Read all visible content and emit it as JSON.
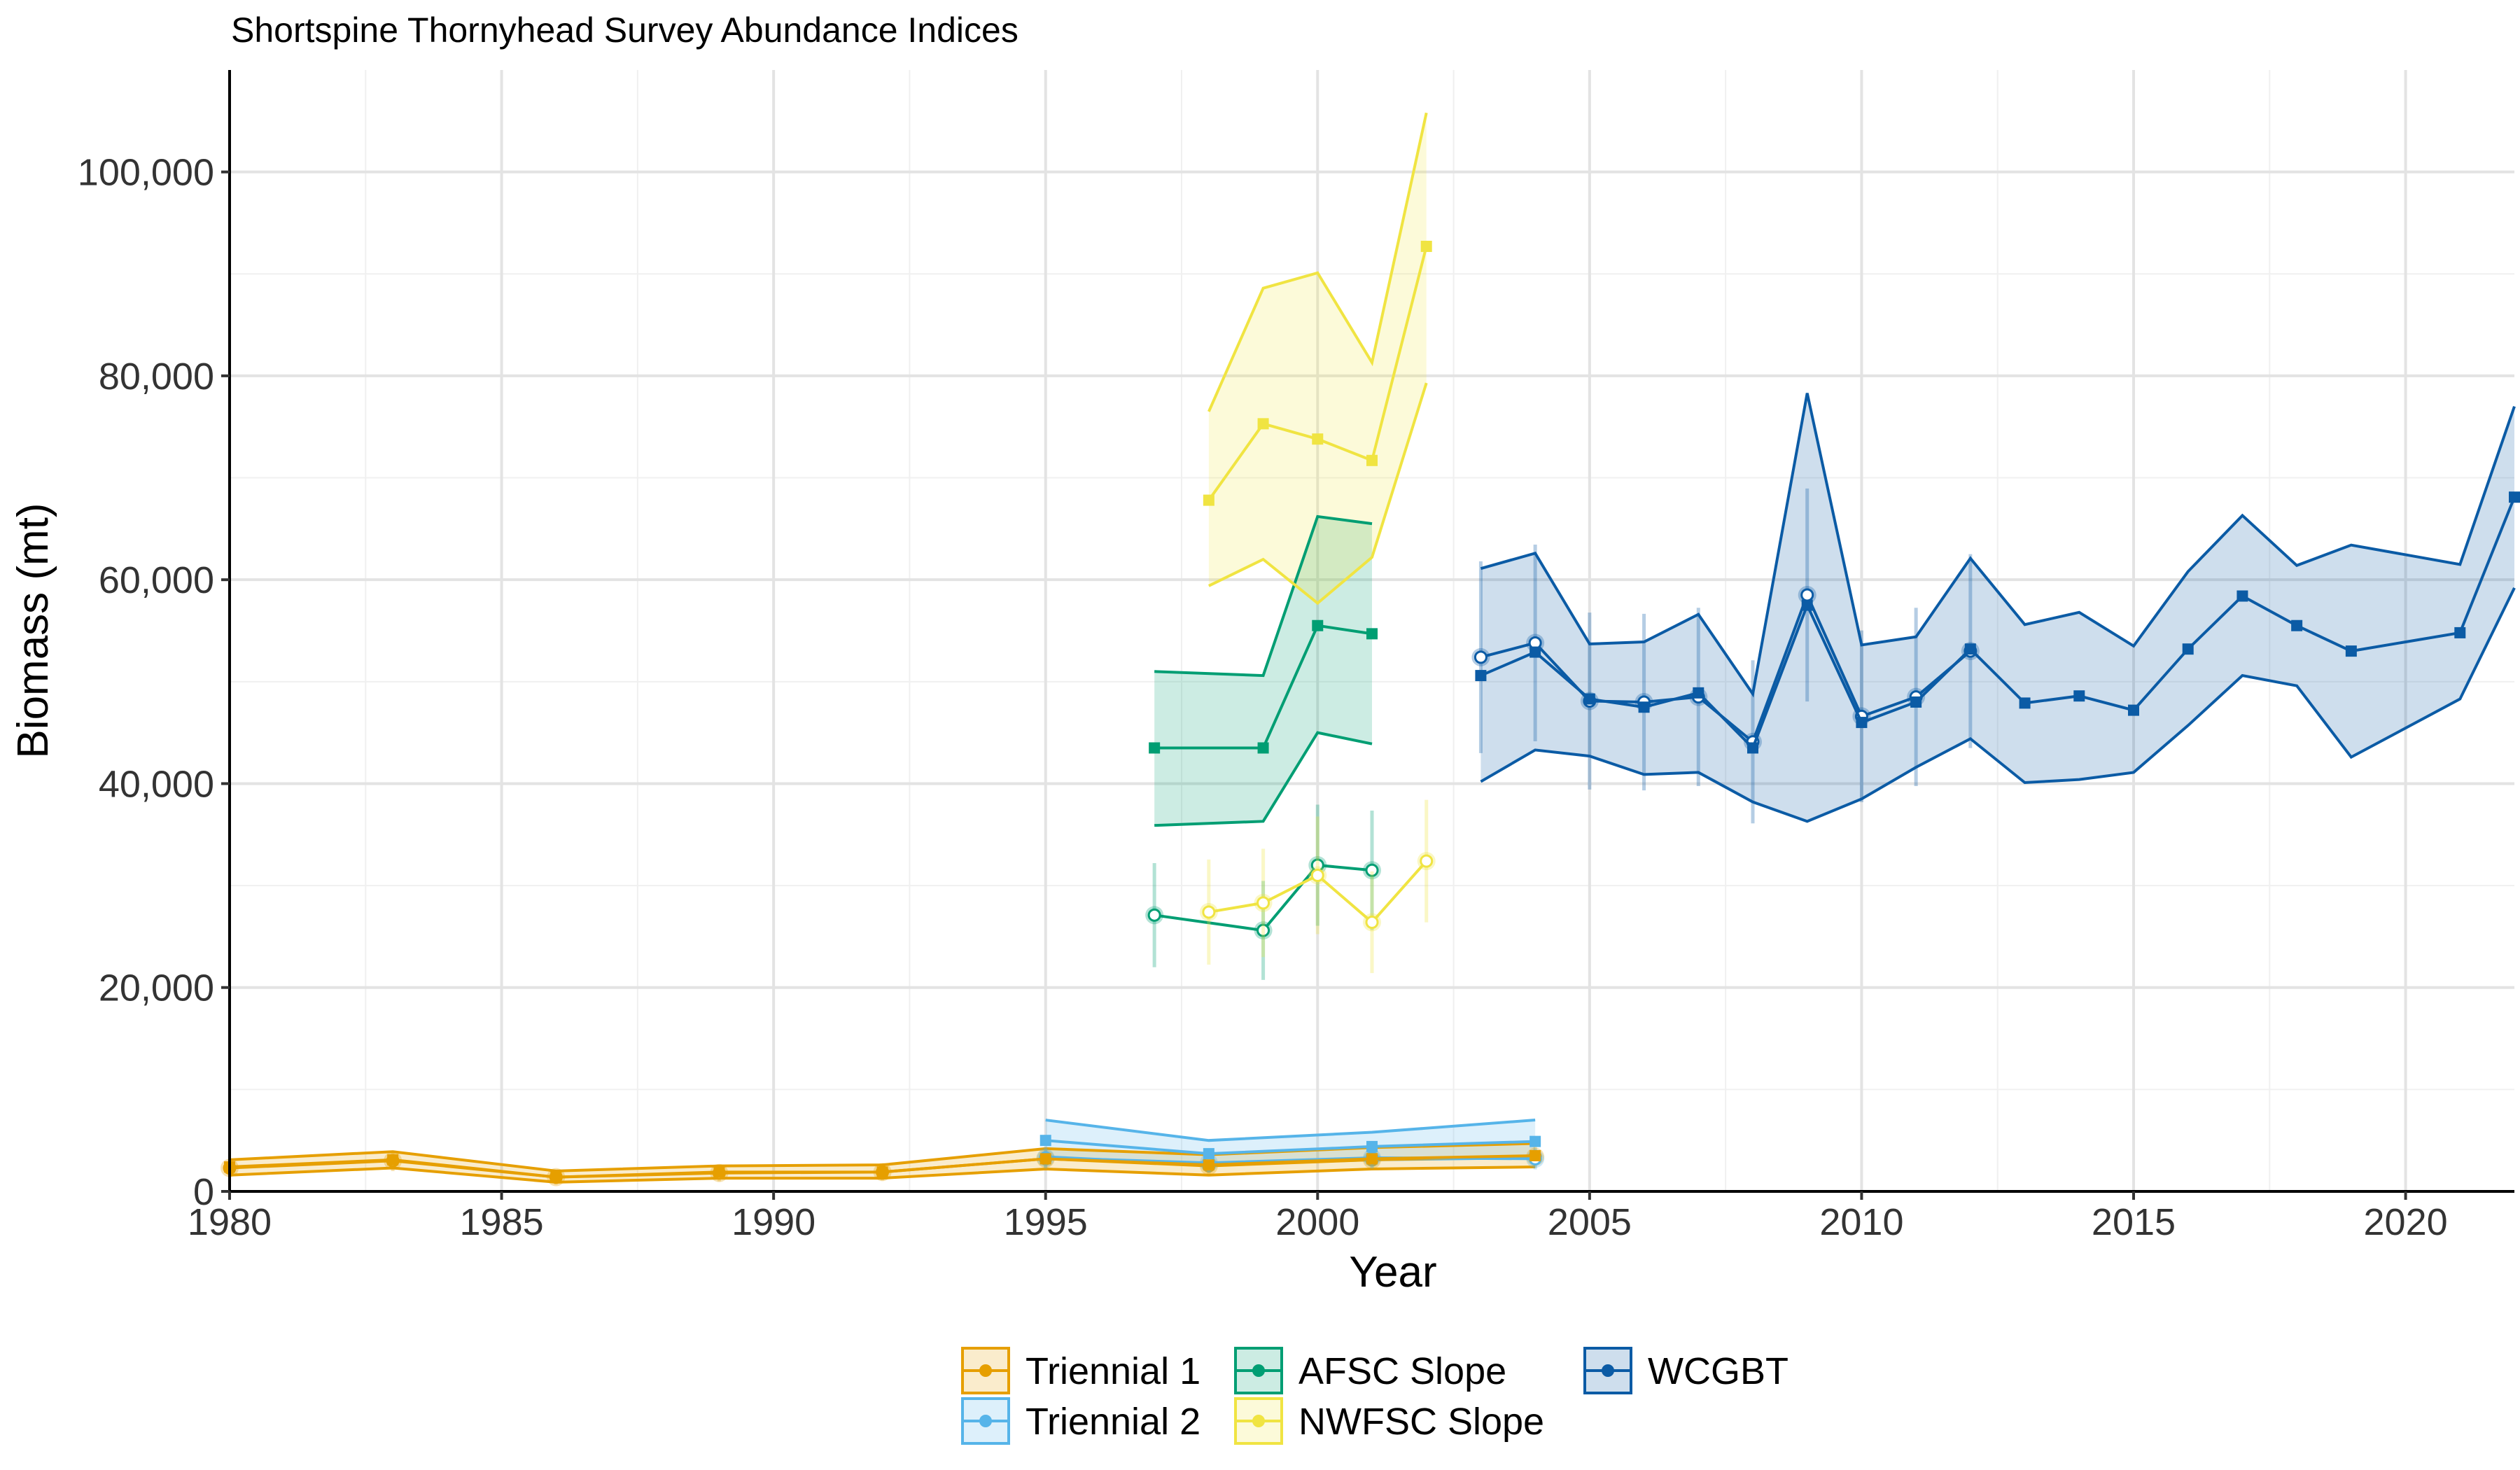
{
  "chart_data": {
    "type": "line",
    "title": "Shortspine Thornyhead Survey Abundance Indices",
    "xlabel": "Year",
    "ylabel": "Biomass (mt)",
    "xlim": [
      1980,
      2022
    ],
    "ylim": [
      0,
      110000
    ],
    "x_ticks": [
      1980,
      1985,
      1990,
      1995,
      2000,
      2005,
      2010,
      2015,
      2020
    ],
    "y_ticks": [
      0,
      20000,
      40000,
      60000,
      80000,
      100000
    ],
    "y_tick_labels": [
      "0",
      "20,000",
      "40,000",
      "60,000",
      "80,000",
      "100,000"
    ],
    "grid": true,
    "legend_position": "bottom",
    "series": [
      {
        "name": "Triennial 1",
        "color": "#E69F00",
        "x": [
          1980,
          1983,
          1986,
          1989,
          1992,
          1995,
          1998,
          2001,
          2004
        ],
        "y": [
          2400,
          3100,
          1400,
          1900,
          1900,
          3200,
          2600,
          3200,
          3500
        ],
        "lower": [
          1600,
          2300,
          900,
          1300,
          1300,
          2200,
          1600,
          2200,
          2400
        ],
        "upper": [
          3100,
          3900,
          2000,
          2500,
          2600,
          4200,
          3600,
          4300,
          4700
        ],
        "index": {
          "x": [
            1980,
            1983,
            1986,
            1989,
            1992,
            1995,
            1998,
            2001,
            2004
          ],
          "y": [
            2300,
            3000,
            1400,
            1800,
            1900,
            3200,
            2500,
            3100,
            3400
          ]
        }
      },
      {
        "name": "Triennial 2",
        "color": "#56B4E9",
        "x": [
          1995,
          1998,
          2001,
          2004
        ],
        "y": [
          5000,
          3700,
          4400,
          4900
        ],
        "lower": [
          3400,
          2600,
          3100,
          3300
        ],
        "upper": [
          7000,
          5000,
          5800,
          7000
        ],
        "index": {
          "x": [
            1995,
            1998,
            2001,
            2004
          ],
          "y": [
            3300,
            2800,
            3300,
            3200
          ]
        }
      },
      {
        "name": "AFSC Slope",
        "color": "#009E73",
        "x": [
          1997,
          1999,
          2000,
          2001
        ],
        "y": [
          43500,
          43500,
          55500,
          54700
        ],
        "lower": [
          35900,
          36300,
          45000,
          43900
        ],
        "upper": [
          51000,
          50600,
          66200,
          65500
        ],
        "index": {
          "x": [
            1997,
            1999,
            2000,
            2001
          ],
          "y": [
            27100,
            25600,
            32000,
            31500
          ]
        }
      },
      {
        "name": "NWFSC Slope",
        "color": "#F0E442",
        "x": [
          1998,
          1999,
          2000,
          2001,
          2002
        ],
        "y": [
          67800,
          75300,
          73800,
          71700,
          92700
        ],
        "lower": [
          59400,
          62000,
          57700,
          62200,
          79300
        ],
        "upper": [
          76500,
          88600,
          90100,
          81300,
          105800
        ],
        "index": {
          "x": [
            1998,
            1999,
            2000,
            2001,
            2002
          ],
          "y": [
            27400,
            28300,
            31000,
            26400,
            32400
          ]
        }
      },
      {
        "name": "WCGBT",
        "color": "#0B5BA5",
        "x": [
          2003,
          2004,
          2005,
          2006,
          2007,
          2008,
          2009,
          2010,
          2011,
          2012,
          2013,
          2014,
          2015,
          2016,
          2017,
          2018,
          2019,
          2021,
          2022
        ],
        "y": [
          50600,
          52900,
          48300,
          47500,
          48900,
          43500,
          57500,
          46000,
          48000,
          53200,
          47900,
          48600,
          47200,
          53200,
          58400,
          55500,
          53000,
          54800,
          68100
        ],
        "lower": [
          40200,
          43300,
          42700,
          40900,
          41100,
          38200,
          36300,
          38500,
          41600,
          44400,
          40100,
          40400,
          41100,
          45700,
          50600,
          49600,
          42600,
          48300,
          59200
        ],
        "upper": [
          61100,
          62600,
          53700,
          53900,
          56600,
          48800,
          78300,
          53600,
          54400,
          62100,
          55600,
          56800,
          53500,
          60800,
          66300,
          61400,
          63400,
          61500,
          77000
        ],
        "index": {
          "x": [
            2003,
            2004,
            2005,
            2006,
            2007,
            2008,
            2009,
            2010,
            2011,
            2012
          ],
          "y": [
            52400,
            53800,
            48100,
            48000,
            48500,
            44100,
            58500,
            46600,
            48500,
            53000
          ]
        }
      }
    ]
  }
}
